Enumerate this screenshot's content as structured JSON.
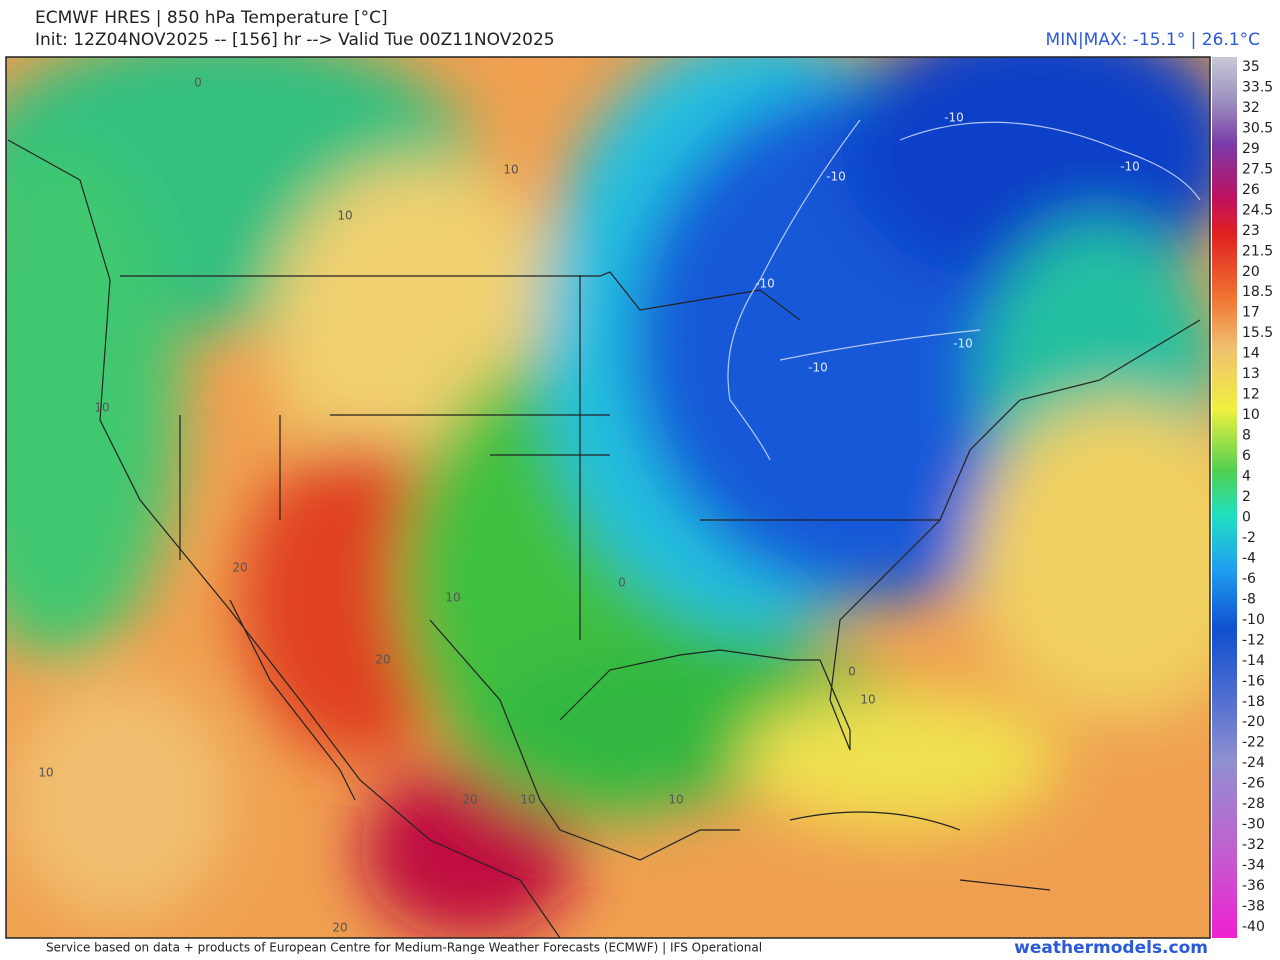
{
  "header": {
    "title": "ECMWF HRES | 850 hPa Temperature [°C]",
    "subtitle": "Init: 12Z04NOV2025 -- [156] hr --> Valid Tue 00Z11NOV2025",
    "minmax": "MIN|MAX: -15.1° | 26.1°C"
  },
  "colorbar": {
    "labels": [
      "35",
      "33.5",
      "32",
      "30.5",
      "29",
      "27.5",
      "26",
      "24.5",
      "23",
      "21.5",
      "20",
      "18.5",
      "17",
      "15.5",
      "14",
      "13",
      "12",
      "10",
      "8",
      "6",
      "4",
      "2",
      "0",
      "-2",
      "-4",
      "-6",
      "-8",
      "-10",
      "-12",
      "-14",
      "-16",
      "-18",
      "-20",
      "-22",
      "-24",
      "-26",
      "-28",
      "-30",
      "-32",
      "-34",
      "-36",
      "-38",
      "-40"
    ]
  },
  "map": {
    "contour_labels": [
      "0",
      "10",
      "10",
      "-10",
      "-10",
      "-10",
      "-10",
      "-10",
      "-10",
      "10",
      "20",
      "10",
      "0",
      "20",
      "0",
      "10",
      "10",
      "20",
      "10",
      "10",
      "20"
    ]
  },
  "footer": {
    "credit": "Service based on data + products of European Centre for Medium-Range Weather Forecasts (ECMWF) | IFS Operational",
    "brand": "weathermodels.com"
  }
}
